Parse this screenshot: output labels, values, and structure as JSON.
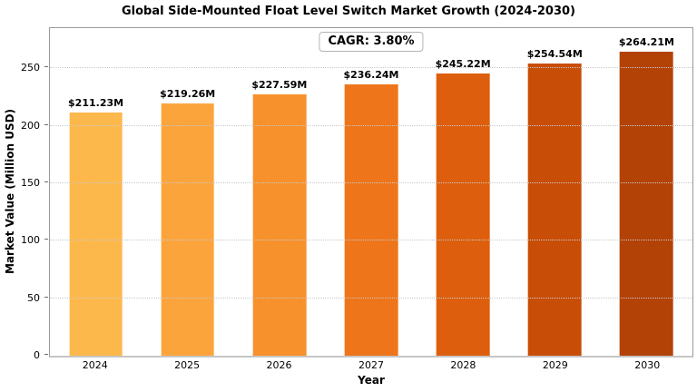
{
  "chart_data": {
    "type": "bar",
    "title": "Global Side-Mounted Float Level Switch Market Growth (2024-2030)",
    "xlabel": "Year",
    "ylabel": "Market Value (Million USD)",
    "annotation": "CAGR: 3.80%",
    "categories": [
      "2024",
      "2025",
      "2026",
      "2027",
      "2028",
      "2029",
      "2030"
    ],
    "values": [
      211.23,
      219.26,
      227.59,
      236.24,
      245.22,
      254.54,
      264.21
    ],
    "value_labels": [
      "$211.23M",
      "$219.26M",
      "$227.59M",
      "$236.24M",
      "$245.22M",
      "$254.54M",
      "$264.21M"
    ],
    "bar_colors": [
      "#fdb84c",
      "#fca43c",
      "#f7912b",
      "#ee751a",
      "#dd5f0e",
      "#c84e08",
      "#b34207"
    ],
    "ylim": [
      0,
      285
    ],
    "yticks": [
      0,
      50,
      100,
      150,
      200,
      250
    ],
    "grid": "horizontal-dotted",
    "background_color": "#ffffff",
    "legend": null
  }
}
